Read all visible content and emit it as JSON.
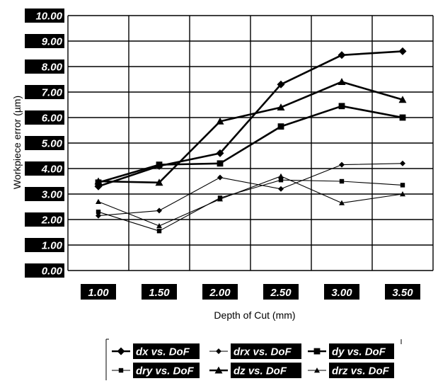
{
  "chart_data": {
    "type": "line",
    "xlabel": "Depth of Cut (mm)",
    "ylabel": "Workpiece error (µm)",
    "x": [
      1.0,
      1.5,
      2.0,
      2.5,
      3.0,
      3.5
    ],
    "x_tick_labels": [
      "1.00",
      "1.50",
      "2.00",
      "2.50",
      "3.00",
      "3.50"
    ],
    "y_tick_labels": [
      "0.00",
      "1.00",
      "2.00",
      "3.00",
      "4.00",
      "5.00",
      "6.00",
      "7.00",
      "8.00",
      "9.00",
      "10.00"
    ],
    "ylim": [
      0,
      10
    ],
    "grid": "horizontal",
    "legend_position": "bottom",
    "series": [
      {
        "name": "dx vs. DoF",
        "marker": "diamond",
        "weight": "thick",
        "values": [
          3.3,
          4.1,
          4.6,
          7.3,
          8.45,
          8.6
        ]
      },
      {
        "name": "drx vs. DoF",
        "marker": "diamond",
        "weight": "thin",
        "values": [
          2.15,
          2.35,
          3.65,
          3.2,
          4.15,
          4.2
        ]
      },
      {
        "name": "dy vs. DoF",
        "marker": "square",
        "weight": "thick",
        "values": [
          3.45,
          4.15,
          4.2,
          5.65,
          6.45,
          6.0
        ]
      },
      {
        "name": "dry vs. DoF",
        "marker": "square",
        "weight": "thin",
        "values": [
          2.3,
          1.55,
          2.85,
          3.55,
          3.5,
          3.35
        ]
      },
      {
        "name": "dz vs. DoF",
        "marker": "triangle",
        "weight": "thick",
        "values": [
          3.5,
          3.45,
          5.85,
          6.4,
          7.4,
          6.7
        ]
      },
      {
        "name": "drz vs. DoF",
        "marker": "triangle",
        "weight": "thin",
        "values": [
          2.7,
          1.75,
          2.8,
          3.7,
          2.65,
          3.0
        ]
      }
    ]
  }
}
